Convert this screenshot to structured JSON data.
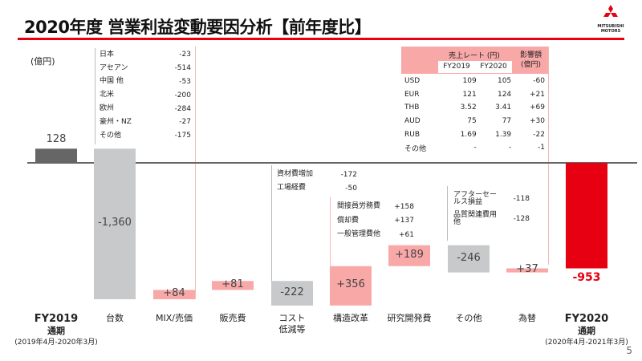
{
  "header": {
    "title": "2020年度 営業利益変動要因分析【前年度比】",
    "logo_text": [
      "MITSUBISHI",
      "MOTORS"
    ],
    "page_number": "5"
  },
  "unit": "(億円)",
  "colors": {
    "base": "#666666",
    "negative": "#c8c9ca",
    "positive": "#f9a8a8",
    "result": "#e60012",
    "accent": "#e60012"
  },
  "chart_data": {
    "type": "waterfall",
    "title": "2020年度 営業利益変動要因分析【前年度比】",
    "ylabel": "(億円)",
    "categories": [
      "FY2019",
      "台数",
      "MIX/売価",
      "販売費",
      "コスト低減等",
      "構造改革",
      "研究開発費",
      "その他",
      "為替",
      "FY2020"
    ],
    "values": [
      128,
      -1360,
      84,
      81,
      -222,
      356,
      189,
      -246,
      37,
      -953
    ],
    "labels": [
      "128",
      "-1,360",
      "+84",
      "+81",
      "-222",
      "+356",
      "+189",
      "-246",
      "+37",
      "-953"
    ],
    "kinds": [
      "total",
      "delta",
      "delta",
      "delta",
      "delta",
      "delta",
      "delta",
      "delta",
      "delta",
      "total"
    ]
  },
  "x_labels": [
    {
      "main": "FY2019",
      "sub": "通期",
      "note": "(2019年4月-2020年3月)"
    },
    {
      "main": "台数"
    },
    {
      "main": "MIX/売価"
    },
    {
      "main": "販売費"
    },
    {
      "main": "コスト",
      "sub": "低減等"
    },
    {
      "main": "構造改革"
    },
    {
      "main": "研究開発費"
    },
    {
      "main": "その他"
    },
    {
      "main": "為替"
    },
    {
      "main": "FY2020",
      "sub": "通期",
      "note": "(2020年4月-2021年3月)"
    }
  ],
  "volume_breakdown": [
    {
      "label": "日本",
      "value": "-23"
    },
    {
      "label": "アセアン",
      "value": "-514"
    },
    {
      "label": "中国 他",
      "value": "-53"
    },
    {
      "label": "北米",
      "value": "-200"
    },
    {
      "label": "欧州",
      "value": "-284"
    },
    {
      "label": "豪州・NZ",
      "value": "-27"
    },
    {
      "label": "その他",
      "value": "-175"
    }
  ],
  "cost_breakdown": [
    {
      "label": "資材費増加",
      "value": "-172"
    },
    {
      "label": "工場経費",
      "value": "-50"
    }
  ],
  "restructuring_breakdown": [
    {
      "label": "間接員労務費",
      "value": "+158"
    },
    {
      "label": "償却費",
      "value": "+137"
    },
    {
      "label": "一般管理費他",
      "value": "+61"
    }
  ],
  "other_breakdown": [
    {
      "label": "アフターセールス損益",
      "value": "-118"
    },
    {
      "label": "品質関連費用他",
      "value": "-128"
    }
  ],
  "fx_table": {
    "header_rate": "売上レート (円)",
    "header_impact": "影響額\n(億円)",
    "col1": "FY2019",
    "col2": "FY2020",
    "rows": [
      {
        "ccy": "USD",
        "fy2019": "109",
        "fy2020": "105",
        "impact": "-60"
      },
      {
        "ccy": "EUR",
        "fy2019": "121",
        "fy2020": "124",
        "impact": "+21"
      },
      {
        "ccy": "THB",
        "fy2019": "3.52",
        "fy2020": "3.41",
        "impact": "+69"
      },
      {
        "ccy": "AUD",
        "fy2019": "75",
        "fy2020": "77",
        "impact": "+30"
      },
      {
        "ccy": "RUB",
        "fy2019": "1.69",
        "fy2020": "1.39",
        "impact": "-22"
      },
      {
        "ccy": "その他",
        "fy2019": "-",
        "fy2020": "-",
        "impact": "-1"
      }
    ]
  }
}
